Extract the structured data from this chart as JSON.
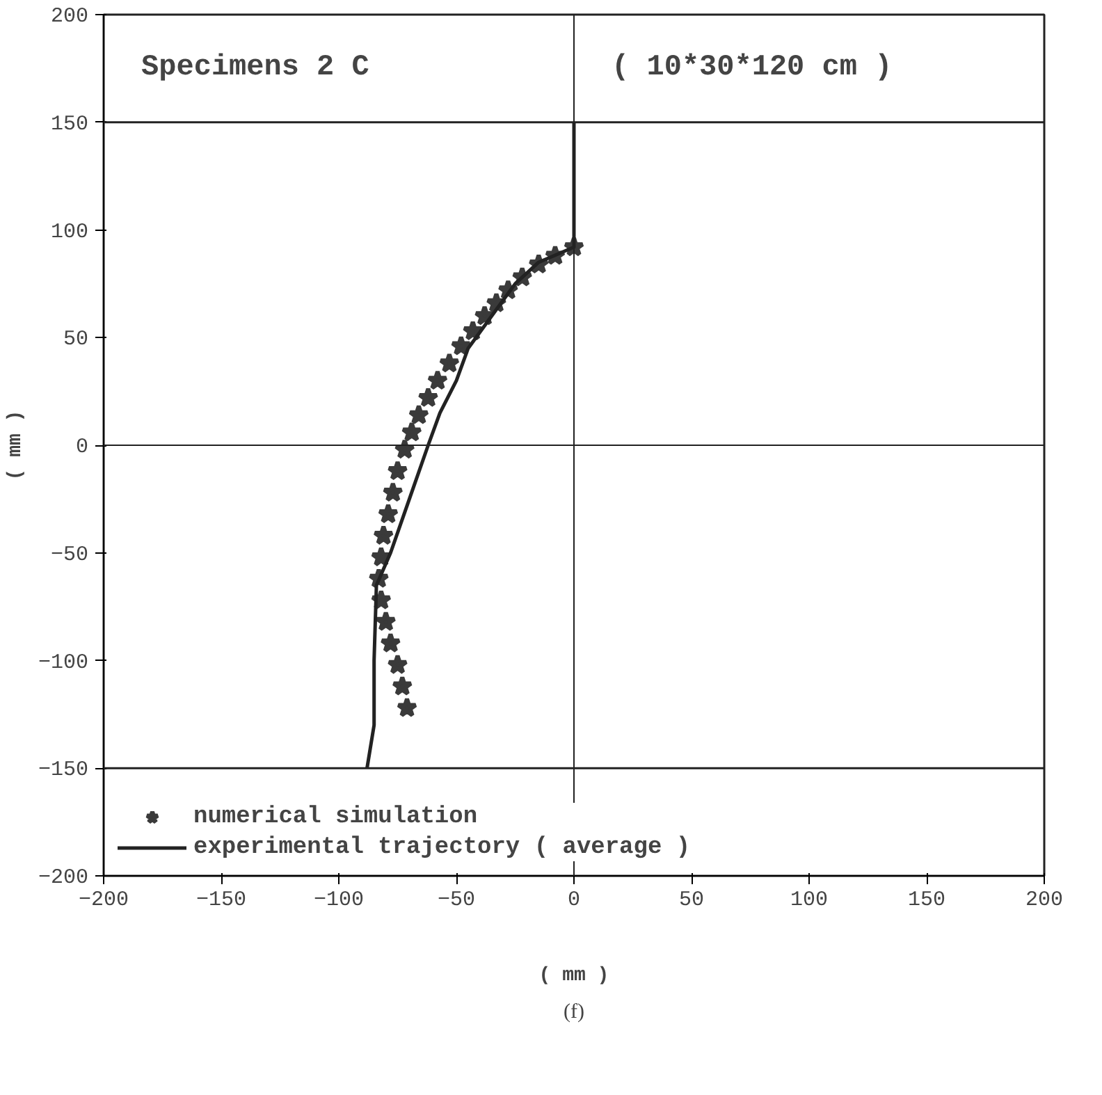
{
  "chart_data": {
    "type": "line",
    "title": "Specimens  2 C",
    "subtitle": "( 10*30*120 cm )",
    "xlabel": "( mm )",
    "ylabel": "( mm )",
    "xlim": [
      -200,
      200
    ],
    "ylim": [
      -200,
      200
    ],
    "xticks": [
      -200,
      -150,
      -100,
      -50,
      0,
      50,
      100,
      150,
      200
    ],
    "yticks": [
      -200,
      -150,
      -100,
      -50,
      0,
      50,
      100,
      150,
      200
    ],
    "grid": false,
    "legend": "bottom left",
    "ref_lines": [
      {
        "axis": "x",
        "value": 0
      },
      {
        "axis": "y",
        "value": 0
      },
      {
        "axis": "y",
        "value": 150
      },
      {
        "axis": "y",
        "value": -150
      }
    ],
    "series": [
      {
        "name": "numerical simulation",
        "type": "scatter",
        "marker": "star",
        "color": "#3a3a3a",
        "x": [
          0,
          -8,
          -15,
          -22,
          -28,
          -33,
          -38,
          -43,
          -48,
          -53,
          -58,
          -62,
          -66,
          -69,
          -72,
          -75,
          -77,
          -79,
          -81,
          -82,
          -83,
          -82,
          -80,
          -78,
          -75,
          -73,
          -71
        ],
        "values": [
          92,
          88,
          84,
          78,
          72,
          66,
          60,
          53,
          46,
          38,
          30,
          22,
          14,
          6,
          -2,
          -12,
          -22,
          -32,
          -42,
          -52,
          -62,
          -72,
          -82,
          -92,
          -102,
          -112,
          -122
        ]
      },
      {
        "name": "experimental trajectory ( average )",
        "color": "#222222",
        "x": [
          0,
          0,
          -15,
          -25,
          -35,
          -45,
          -50,
          -57,
          -62,
          -70,
          -78,
          -84,
          -85,
          -85,
          -88
        ],
        "values": [
          150,
          92,
          85,
          75,
          60,
          45,
          30,
          15,
          0,
          -25,
          -50,
          -65,
          -100,
          -130,
          -150
        ]
      }
    ],
    "annotations": [
      "(f)"
    ]
  }
}
